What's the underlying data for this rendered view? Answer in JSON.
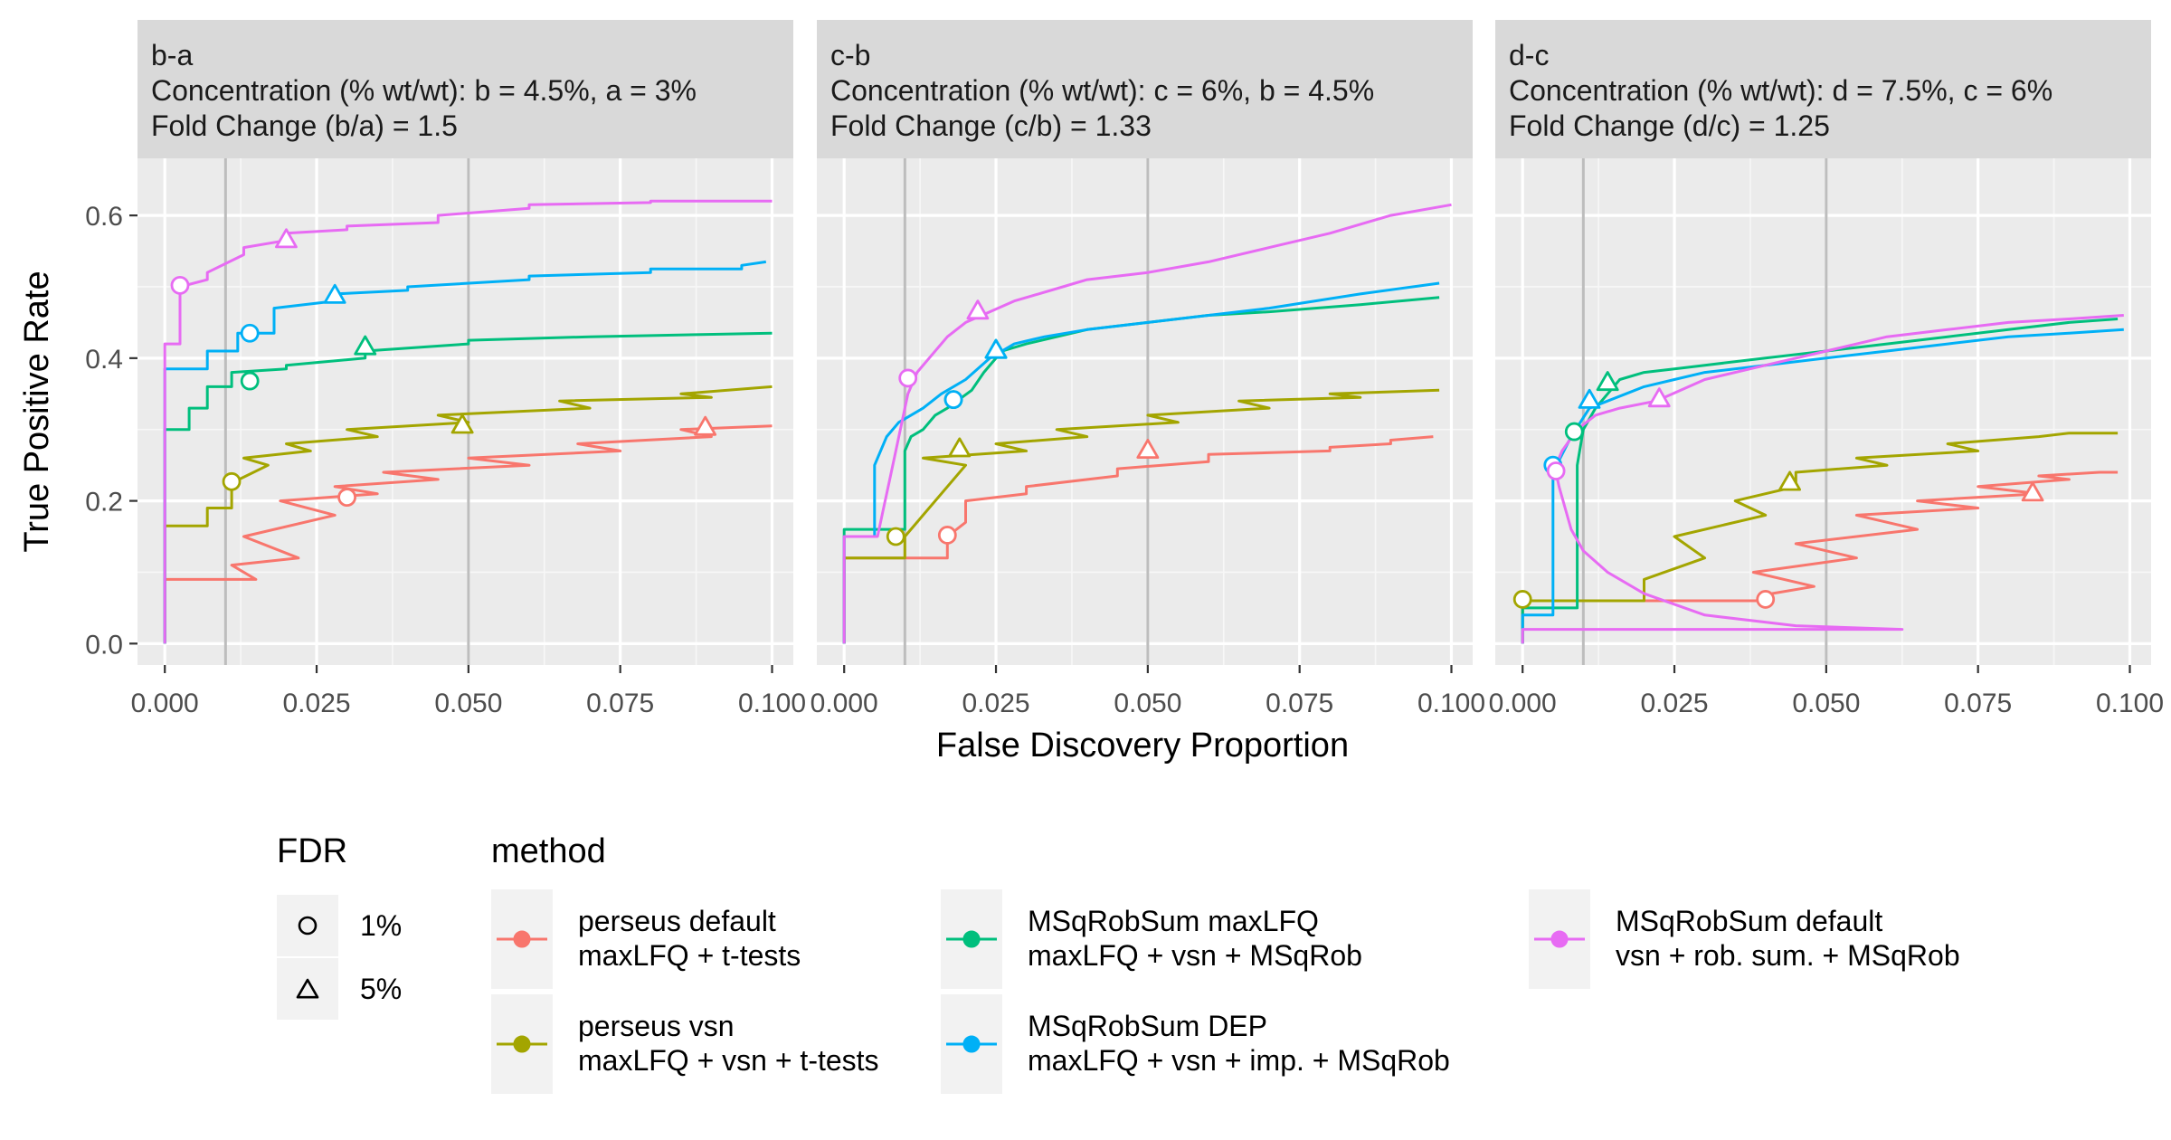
{
  "chart_data": {
    "type": "line",
    "ylabel": "True Positive Rate",
    "xlabel": "False Discovery Proportion",
    "xlim": [
      -0.0045,
      0.1035
    ],
    "ylim": [
      -0.03,
      0.68
    ],
    "x_ticks": [
      0,
      0.025,
      0.05,
      0.075,
      0.1
    ],
    "x_tick_labels": [
      "0.000",
      "0.025",
      "0.050",
      "0.075",
      "0.100"
    ],
    "y_ticks": [
      0,
      0.2,
      0.4,
      0.6
    ],
    "y_tick_labels": [
      "0.0",
      "0.2",
      "0.4",
      "0.6"
    ],
    "fdr_lines": [
      0.01,
      0.05
    ],
    "grid": true,
    "legend_position": "bottom",
    "colors": {
      "perseus_default": "#F8766D",
      "perseus_vsn": "#A3A500",
      "msqrobsum_maxlfq": "#00BF7D",
      "msqrobsum_dep": "#00B0F6",
      "msqrobsum_default": "#E76BF3"
    },
    "legend": {
      "fdr_title": "FDR",
      "fdr_items": [
        {
          "shape": "circle",
          "label": "1%"
        },
        {
          "shape": "triangle",
          "label": "5%"
        }
      ],
      "method_title": "method",
      "method_items": [
        {
          "key": "perseus_default",
          "line1": "perseus default",
          "line2": "maxLFQ + t-tests"
        },
        {
          "key": "perseus_vsn",
          "line1": "perseus vsn",
          "line2": "maxLFQ + vsn + t-tests"
        },
        {
          "key": "msqrobsum_maxlfq",
          "line1": "MSqRobSum maxLFQ",
          "line2": "maxLFQ + vsn + MSqRob"
        },
        {
          "key": "msqrobsum_dep",
          "line1": "MSqRobSum DEP",
          "line2": "maxLFQ + vsn + imp. + MSqRob"
        },
        {
          "key": "msqrobsum_default",
          "line1": "MSqRobSum default",
          "line2": "vsn + rob. sum.  + MSqRob"
        }
      ]
    },
    "panels": [
      {
        "strip": [
          "b-a",
          "Concentration (% wt/wt): b = 4.5%, a = 3%",
          "Fold Change (b/a) = 1.5"
        ],
        "series": [
          {
            "key": "perseus_default",
            "x": [
              0,
              0,
              0.015,
              0.011,
              0.022,
              0.013,
              0.028,
              0.019,
              0.035,
              0.028,
              0.045,
              0.036,
              0.06,
              0.05,
              0.075,
              0.068,
              0.09,
              0.085,
              0.1
            ],
            "y": [
              0,
              0.09,
              0.09,
              0.11,
              0.12,
              0.15,
              0.18,
              0.2,
              0.21,
              0.22,
              0.23,
              0.24,
              0.25,
              0.26,
              0.27,
              0.28,
              0.29,
              0.3,
              0.305
            ],
            "c1": [
              0.03,
              0.205
            ],
            "c5": [
              0.089,
              0.302
            ]
          },
          {
            "key": "perseus_vsn",
            "x": [
              0,
              0,
              0.007,
              0.007,
              0.011,
              0.011,
              0.017,
              0.013,
              0.024,
              0.02,
              0.035,
              0.03,
              0.05,
              0.045,
              0.07,
              0.065,
              0.09,
              0.085,
              0.1
            ],
            "y": [
              0,
              0.165,
              0.165,
              0.19,
              0.19,
              0.225,
              0.25,
              0.26,
              0.27,
              0.28,
              0.29,
              0.3,
              0.31,
              0.32,
              0.33,
              0.34,
              0.345,
              0.35,
              0.36
            ],
            "c1": [
              0.011,
              0.227
            ],
            "c5": [
              0.049,
              0.305
            ]
          },
          {
            "key": "msqrobsum_maxlfq",
            "x": [
              0,
              0,
              0.004,
              0.004,
              0.007,
              0.007,
              0.011,
              0.011,
              0.02,
              0.02,
              0.033,
              0.033,
              0.05,
              0.05,
              0.07,
              0.07,
              0.1
            ],
            "y": [
              0,
              0.3,
              0.3,
              0.33,
              0.33,
              0.36,
              0.36,
              0.38,
              0.385,
              0.39,
              0.4,
              0.41,
              0.42,
              0.425,
              0.43,
              0.43,
              0.435
            ],
            "c1": [
              0.014,
              0.368
            ],
            "c5": [
              0.033,
              0.415
            ]
          },
          {
            "key": "msqrobsum_dep",
            "x": [
              0,
              0,
              0.007,
              0.007,
              0.012,
              0.012,
              0.018,
              0.018,
              0.028,
              0.028,
              0.04,
              0.04,
              0.06,
              0.06,
              0.08,
              0.08,
              0.095,
              0.095,
              0.099
            ],
            "y": [
              0,
              0.385,
              0.385,
              0.41,
              0.41,
              0.435,
              0.435,
              0.47,
              0.48,
              0.49,
              0.495,
              0.5,
              0.51,
              0.515,
              0.52,
              0.525,
              0.525,
              0.53,
              0.535
            ],
            "c1": [
              0.014,
              0.435
            ],
            "c5": [
              0.028,
              0.487
            ]
          },
          {
            "key": "msqrobsum_default",
            "x": [
              0,
              0,
              0.0025,
              0.0025,
              0.007,
              0.007,
              0.013,
              0.013,
              0.02,
              0.02,
              0.03,
              0.03,
              0.045,
              0.045,
              0.06,
              0.06,
              0.08,
              0.08,
              0.1
            ],
            "y": [
              0,
              0.42,
              0.42,
              0.5,
              0.51,
              0.52,
              0.545,
              0.555,
              0.565,
              0.575,
              0.58,
              0.585,
              0.59,
              0.6,
              0.61,
              0.615,
              0.618,
              0.62,
              0.62
            ],
            "c1": [
              0.0025,
              0.502
            ],
            "c5": [
              0.02,
              0.565
            ]
          }
        ]
      },
      {
        "strip": [
          "c-b",
          "Concentration (% wt/wt): c = 6%, b = 4.5%",
          "Fold Change (c/b) = 1.33"
        ],
        "series": [
          {
            "key": "perseus_default",
            "x": [
              0,
              0,
              0.017,
              0.017,
              0.02,
              0.02,
              0.03,
              0.03,
              0.045,
              0.045,
              0.06,
              0.06,
              0.08,
              0.08,
              0.09,
              0.09,
              0.097
            ],
            "y": [
              0,
              0.12,
              0.12,
              0.15,
              0.17,
              0.2,
              0.21,
              0.22,
              0.235,
              0.245,
              0.255,
              0.265,
              0.27,
              0.275,
              0.28,
              0.285,
              0.29
            ],
            "c1": [
              0.017,
              0.152
            ],
            "c5": [
              0.05,
              0.27
            ]
          },
          {
            "key": "perseus_vsn",
            "x": [
              0,
              0,
              0.01,
              0.01,
              0.02,
              0.013,
              0.03,
              0.025,
              0.04,
              0.035,
              0.055,
              0.05,
              0.07,
              0.065,
              0.085,
              0.08,
              0.098
            ],
            "y": [
              0,
              0.12,
              0.12,
              0.15,
              0.25,
              0.26,
              0.27,
              0.28,
              0.29,
              0.3,
              0.31,
              0.32,
              0.33,
              0.34,
              0.345,
              0.35,
              0.355
            ],
            "c1": [
              0.0085,
              0.15
            ],
            "c5": [
              0.019,
              0.272
            ]
          },
          {
            "key": "msqrobsum_maxlfq",
            "x": [
              0,
              0,
              0.01,
              0.01,
              0.011,
              0.013,
              0.015,
              0.017,
              0.021,
              0.023,
              0.026,
              0.03,
              0.035,
              0.04,
              0.05,
              0.06,
              0.07,
              0.085,
              0.098
            ],
            "y": [
              0,
              0.16,
              0.16,
              0.27,
              0.29,
              0.3,
              0.32,
              0.33,
              0.355,
              0.38,
              0.41,
              0.42,
              0.43,
              0.44,
              0.45,
              0.46,
              0.465,
              0.475,
              0.485
            ],
            "c1": [
              0.018,
              0.342
            ],
            "c5": [
              0.025,
              0.41
            ]
          },
          {
            "key": "msqrobsum_dep",
            "x": [
              0,
              0,
              0.005,
              0.005,
              0.007,
              0.009,
              0.011,
              0.013,
              0.016,
              0.02,
              0.024,
              0.028,
              0.033,
              0.04,
              0.05,
              0.06,
              0.07,
              0.085,
              0.098
            ],
            "y": [
              0,
              0.15,
              0.15,
              0.25,
              0.29,
              0.31,
              0.32,
              0.33,
              0.35,
              0.37,
              0.4,
              0.42,
              0.43,
              0.44,
              0.45,
              0.46,
              0.47,
              0.49,
              0.505
            ],
            "c1": [
              0.018,
              0.342
            ],
            "c5": [
              0.025,
              0.41
            ]
          },
          {
            "key": "msqrobsum_default",
            "x": [
              0,
              0,
              0.0055,
              0.0065,
              0.0075,
              0.0085,
              0.0095,
              0.0105,
              0.012,
              0.014,
              0.017,
              0.02,
              0.024,
              0.028,
              0.032,
              0.036,
              0.04,
              0.05,
              0.06,
              0.07,
              0.08,
              0.09,
              0.1
            ],
            "y": [
              0,
              0.15,
              0.15,
              0.19,
              0.23,
              0.27,
              0.31,
              0.35,
              0.38,
              0.4,
              0.43,
              0.45,
              0.465,
              0.48,
              0.49,
              0.5,
              0.51,
              0.52,
              0.535,
              0.555,
              0.575,
              0.6,
              0.615
            ],
            "c1": [
              0.0105,
              0.372
            ],
            "c5": [
              0.022,
              0.465
            ]
          }
        ]
      },
      {
        "strip": [
          "d-c",
          "Concentration (% wt/wt): d = 7.5%, c = 6%",
          "Fold Change (d/c) = 1.25"
        ],
        "series": [
          {
            "key": "perseus_default",
            "x": [
              0,
              0,
              0.041,
              0.041,
              0.048,
              0.038,
              0.055,
              0.045,
              0.065,
              0.055,
              0.075,
              0.065,
              0.085,
              0.075,
              0.09,
              0.085,
              0.095,
              0.098
            ],
            "y": [
              0,
              0.06,
              0.06,
              0.07,
              0.08,
              0.1,
              0.12,
              0.14,
              0.16,
              0.18,
              0.19,
              0.2,
              0.21,
              0.22,
              0.23,
              0.235,
              0.24,
              0.24
            ],
            "c1": [
              0.04,
              0.062
            ],
            "c5": [
              0.084,
              0.21
            ]
          },
          {
            "key": "perseus_vsn",
            "x": [
              0,
              0,
              0.02,
              0.02,
              0.03,
              0.025,
              0.04,
              0.035,
              0.045,
              0.045,
              0.06,
              0.055,
              0.075,
              0.07,
              0.085,
              0.09,
              0.098
            ],
            "y": [
              0,
              0.06,
              0.06,
              0.09,
              0.12,
              0.15,
              0.18,
              0.2,
              0.22,
              0.24,
              0.25,
              0.26,
              0.27,
              0.28,
              0.29,
              0.295,
              0.295
            ],
            "c1": [
              0,
              0.062
            ],
            "c5": [
              0.044,
              0.225
            ]
          },
          {
            "key": "msqrobsum_maxlfq",
            "x": [
              0,
              0,
              0.009,
              0.009,
              0.01,
              0.012,
              0.014,
              0.016,
              0.02,
              0.025,
              0.03,
              0.04,
              0.05,
              0.06,
              0.07,
              0.08,
              0.09,
              0.098
            ],
            "y": [
              0,
              0.05,
              0.05,
              0.25,
              0.3,
              0.33,
              0.35,
              0.37,
              0.38,
              0.385,
              0.39,
              0.4,
              0.41,
              0.42,
              0.43,
              0.44,
              0.45,
              0.455
            ],
            "c1": [
              0.0085,
              0.297
            ],
            "c5": [
              0.014,
              0.365
            ]
          },
          {
            "key": "msqrobsum_dep",
            "x": [
              0,
              0,
              0.005,
              0.005,
              0.008,
              0.011,
              0.014,
              0.017,
              0.02,
              0.025,
              0.03,
              0.04,
              0.05,
              0.06,
              0.07,
              0.08,
              0.09,
              0.099
            ],
            "y": [
              0,
              0.04,
              0.04,
              0.24,
              0.29,
              0.33,
              0.34,
              0.35,
              0.36,
              0.37,
              0.38,
              0.39,
              0.4,
              0.41,
              0.42,
              0.43,
              0.435,
              0.44
            ],
            "c1": [
              0.005,
              0.25
            ],
            "c5": [
              0.011,
              0.34
            ]
          },
          {
            "key": "msqrobsum_default",
            "x": [
              0,
              0,
              0.0625,
              0.045,
              0.03,
              0.02,
              0.014,
              0.01,
              0.008,
              0.007,
              0.006,
              0.0055,
              0.0055,
              0.0065,
              0.009,
              0.012,
              0.016,
              0.022,
              0.03,
              0.04,
              0.05,
              0.06,
              0.07,
              0.08,
              0.09,
              0.099
            ],
            "y": [
              0,
              0.02,
              0.02,
              0.025,
              0.04,
              0.07,
              0.1,
              0.13,
              0.16,
              0.19,
              0.22,
              0.24,
              0.25,
              0.27,
              0.3,
              0.32,
              0.33,
              0.34,
              0.37,
              0.39,
              0.41,
              0.43,
              0.44,
              0.45,
              0.455,
              0.46
            ],
            "c1": [
              0.0055,
              0.242
            ],
            "c5": [
              0.0225,
              0.342
            ]
          }
        ]
      }
    ]
  }
}
